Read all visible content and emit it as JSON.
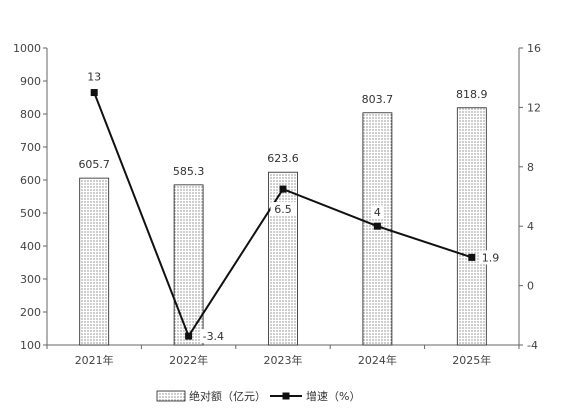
{
  "chart_data": {
    "type": "bar+line",
    "categories": [
      "2021年",
      "2022年",
      "2023年",
      "2024年",
      "2025年"
    ],
    "series": [
      {
        "name": "绝对额（亿元）",
        "type": "bar",
        "axis": "left",
        "values": [
          605.7,
          585.3,
          623.6,
          803.7,
          818.9
        ],
        "labels": [
          "605.7",
          "585.3",
          "623.6",
          "803.7",
          "818.9"
        ]
      },
      {
        "name": "增速（%）",
        "type": "line",
        "axis": "right",
        "values": [
          13,
          -3.4,
          6.5,
          4,
          1.9
        ],
        "labels": [
          "13",
          "-3.4",
          "6.5",
          "4",
          "1.9"
        ]
      }
    ],
    "y_left": {
      "min": 100,
      "max": 1000,
      "ticks": [
        "100",
        "200",
        "300",
        "400",
        "500",
        "600",
        "700",
        "800",
        "900",
        "1000"
      ]
    },
    "y_right": {
      "min": -4,
      "max": 16,
      "ticks": [
        "-4",
        "0",
        "4",
        "8",
        "12",
        "16"
      ]
    },
    "grid": false,
    "legend_position": "bottom",
    "colors": {
      "bar_fill": "#ffffff",
      "bar_dots": "#555555",
      "bar_stroke": "#222222",
      "line": "#111111",
      "axis": "#666666"
    }
  }
}
